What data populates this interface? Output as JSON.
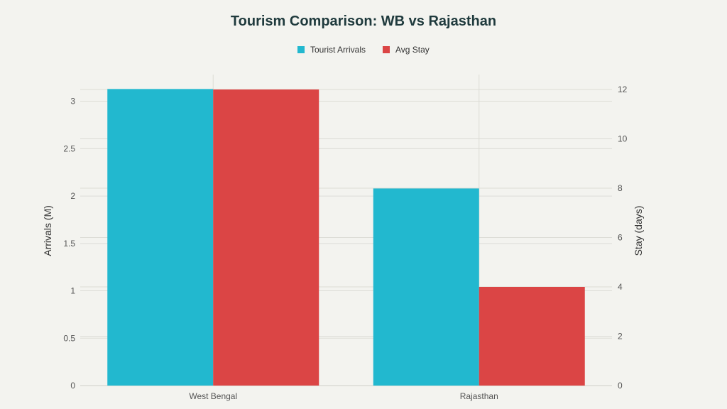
{
  "chart_data": {
    "type": "bar",
    "title": "Tourism Comparison: WB vs Rajasthan",
    "categories": [
      "West Bengal",
      "Rajasthan"
    ],
    "series": [
      {
        "name": "Tourist Arrivals",
        "axis": "left",
        "values": [
          3.13,
          2.08
        ],
        "color": "#22b8cf"
      },
      {
        "name": "Avg Stay",
        "axis": "right",
        "values": [
          12,
          4
        ],
        "color": "#db4545"
      }
    ],
    "ylabel": "Arrivals (M)",
    "ylim": [
      0,
      3.125
    ],
    "yticks": [
      "0",
      "0.5",
      "1",
      "1.5",
      "2",
      "2.5",
      "3"
    ],
    "y2label": "Stay (days)",
    "y2lim": [
      0,
      12
    ],
    "y2ticks": [
      "0",
      "2",
      "4",
      "6",
      "8",
      "10",
      "12"
    ],
    "legend_position": "top-center",
    "grid": true
  }
}
